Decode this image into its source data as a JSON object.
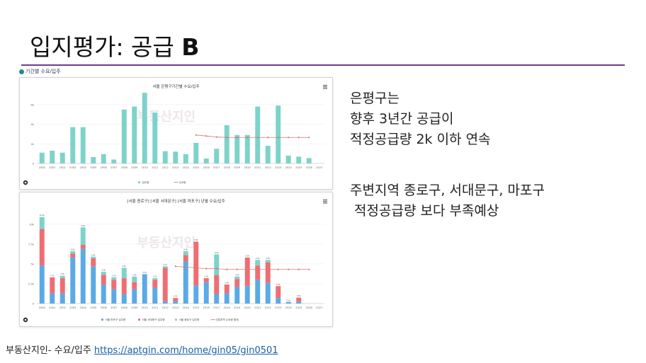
{
  "title": "입지평가: 공급",
  "title_bold": "B",
  "section_label": "기간별 수요/입주",
  "right_text_1": [
    "은평구는",
    "향후 3년간  공급이",
    "적정공급량 2k 이하 연속"
  ],
  "right_text_2": [
    "주변지역  종로구, 서대문구, 마포구",
    " 적정공급량 보다 부족예상"
  ],
  "footer": {
    "text": "부동산지인- 수요/입주",
    "link": "https://aptgin.com/home/gin05/gin0501"
  },
  "colors": {
    "supply": "#7dd3c9",
    "jongno": "#7dd3c9",
    "seodaemun": "#ee6e73",
    "mapo": "#5aaae6",
    "demand": "#e57373",
    "rule": "#6b3d8f"
  },
  "chart_data": [
    {
      "type": "bar",
      "title": "서울 은평구기간별 수요/입주",
      "watermark": "부동산지인",
      "categories": [
        "2000",
        "2001",
        "2002",
        "2003",
        "2004",
        "2005",
        "2006",
        "2007",
        "2008",
        "2009",
        "2010",
        "2011",
        "2012",
        "2013",
        "2014",
        "2015",
        "2016",
        "2017",
        "2018",
        "2019",
        "2020",
        "2021",
        "2022",
        "2023",
        "2024",
        "2025",
        "2026",
        "2027"
      ],
      "yticks": [
        "0",
        "2k",
        "4k",
        "6k"
      ],
      "ylim": [
        0,
        7000
      ],
      "series": [
        {
          "name": "입주량",
          "kind": "bar",
          "values": [
            1100,
            1300,
            1100,
            3700,
            3700,
            650,
            950,
            400,
            5500,
            5800,
            7200,
            5200,
            1250,
            1200,
            950,
            2100,
            500,
            1500,
            3900,
            2900,
            2900,
            5800,
            1800,
            5900,
            800,
            700,
            550,
            0
          ]
        },
        {
          "name": "수요량",
          "kind": "line",
          "values": [
            null,
            null,
            null,
            null,
            null,
            null,
            null,
            null,
            null,
            null,
            null,
            null,
            null,
            null,
            null,
            2900,
            2800,
            2700,
            2650,
            2650,
            2650,
            2650,
            2650,
            2650,
            2650,
            2650,
            2650,
            null
          ]
        }
      ],
      "legend": "bottom-center"
    },
    {
      "type": "bar",
      "stacked": true,
      "title": "[서울 종로구] [서울 서대문구] [서울 마포구] 년별 수요/입주",
      "watermark": "부동산지인",
      "categories": [
        "2000",
        "2001",
        "2002",
        "2003",
        "2004",
        "2005",
        "2006",
        "2007",
        "2008",
        "2009",
        "2010",
        "2011",
        "2012",
        "2013",
        "2014",
        "2015",
        "2016",
        "2017",
        "2018",
        "2019",
        "2020",
        "2021",
        "2022",
        "2023",
        "2024",
        "2025",
        "2026",
        "2027"
      ],
      "yticks": [
        "0",
        "2.5k",
        "5k",
        "7.5k",
        "10k"
      ],
      "ylim": [
        0,
        11500
      ],
      "series": [
        {
          "name": "서울 마포구 입주량",
          "kind": "bar",
          "values": [
            4800,
            1300,
            1300,
            5800,
            6900,
            4700,
            2400,
            1800,
            1200,
            1800,
            3700,
            2000,
            300,
            300,
            5300,
            2300,
            2700,
            1200,
            1300,
            2100,
            2200,
            3000,
            2600,
            700,
            200,
            250,
            0,
            0
          ]
        },
        {
          "name": "서울 서대문구 입주량",
          "kind": "bar",
          "values": [
            4600,
            2000,
            1900,
            500,
            500,
            1000,
            1200,
            1200,
            2000,
            900,
            0,
            1000,
            4200,
            400,
            800,
            5500,
            500,
            2400,
            1100,
            1000,
            3600,
            1800,
            2600,
            1500,
            0,
            500,
            0,
            0
          ]
        },
        {
          "name": "서울 종로구 입주량",
          "kind": "bar",
          "values": [
            1500,
            0,
            300,
            300,
            2200,
            200,
            400,
            300,
            1300,
            700,
            0,
            200,
            200,
            0,
            500,
            0,
            0,
            2600,
            0,
            300,
            0,
            700,
            300,
            0,
            0,
            0,
            0,
            0
          ]
        },
        {
          "name": "인접지역 수요량 합계",
          "kind": "line",
          "values": [
            null,
            null,
            null,
            null,
            null,
            null,
            null,
            null,
            null,
            null,
            null,
            null,
            null,
            4700,
            4600,
            4500,
            4400,
            4400,
            4300,
            4300,
            4300,
            4300,
            4300,
            4300,
            4300,
            4300,
            4300,
            null
          ]
        }
      ],
      "legend": "bottom-center"
    }
  ]
}
